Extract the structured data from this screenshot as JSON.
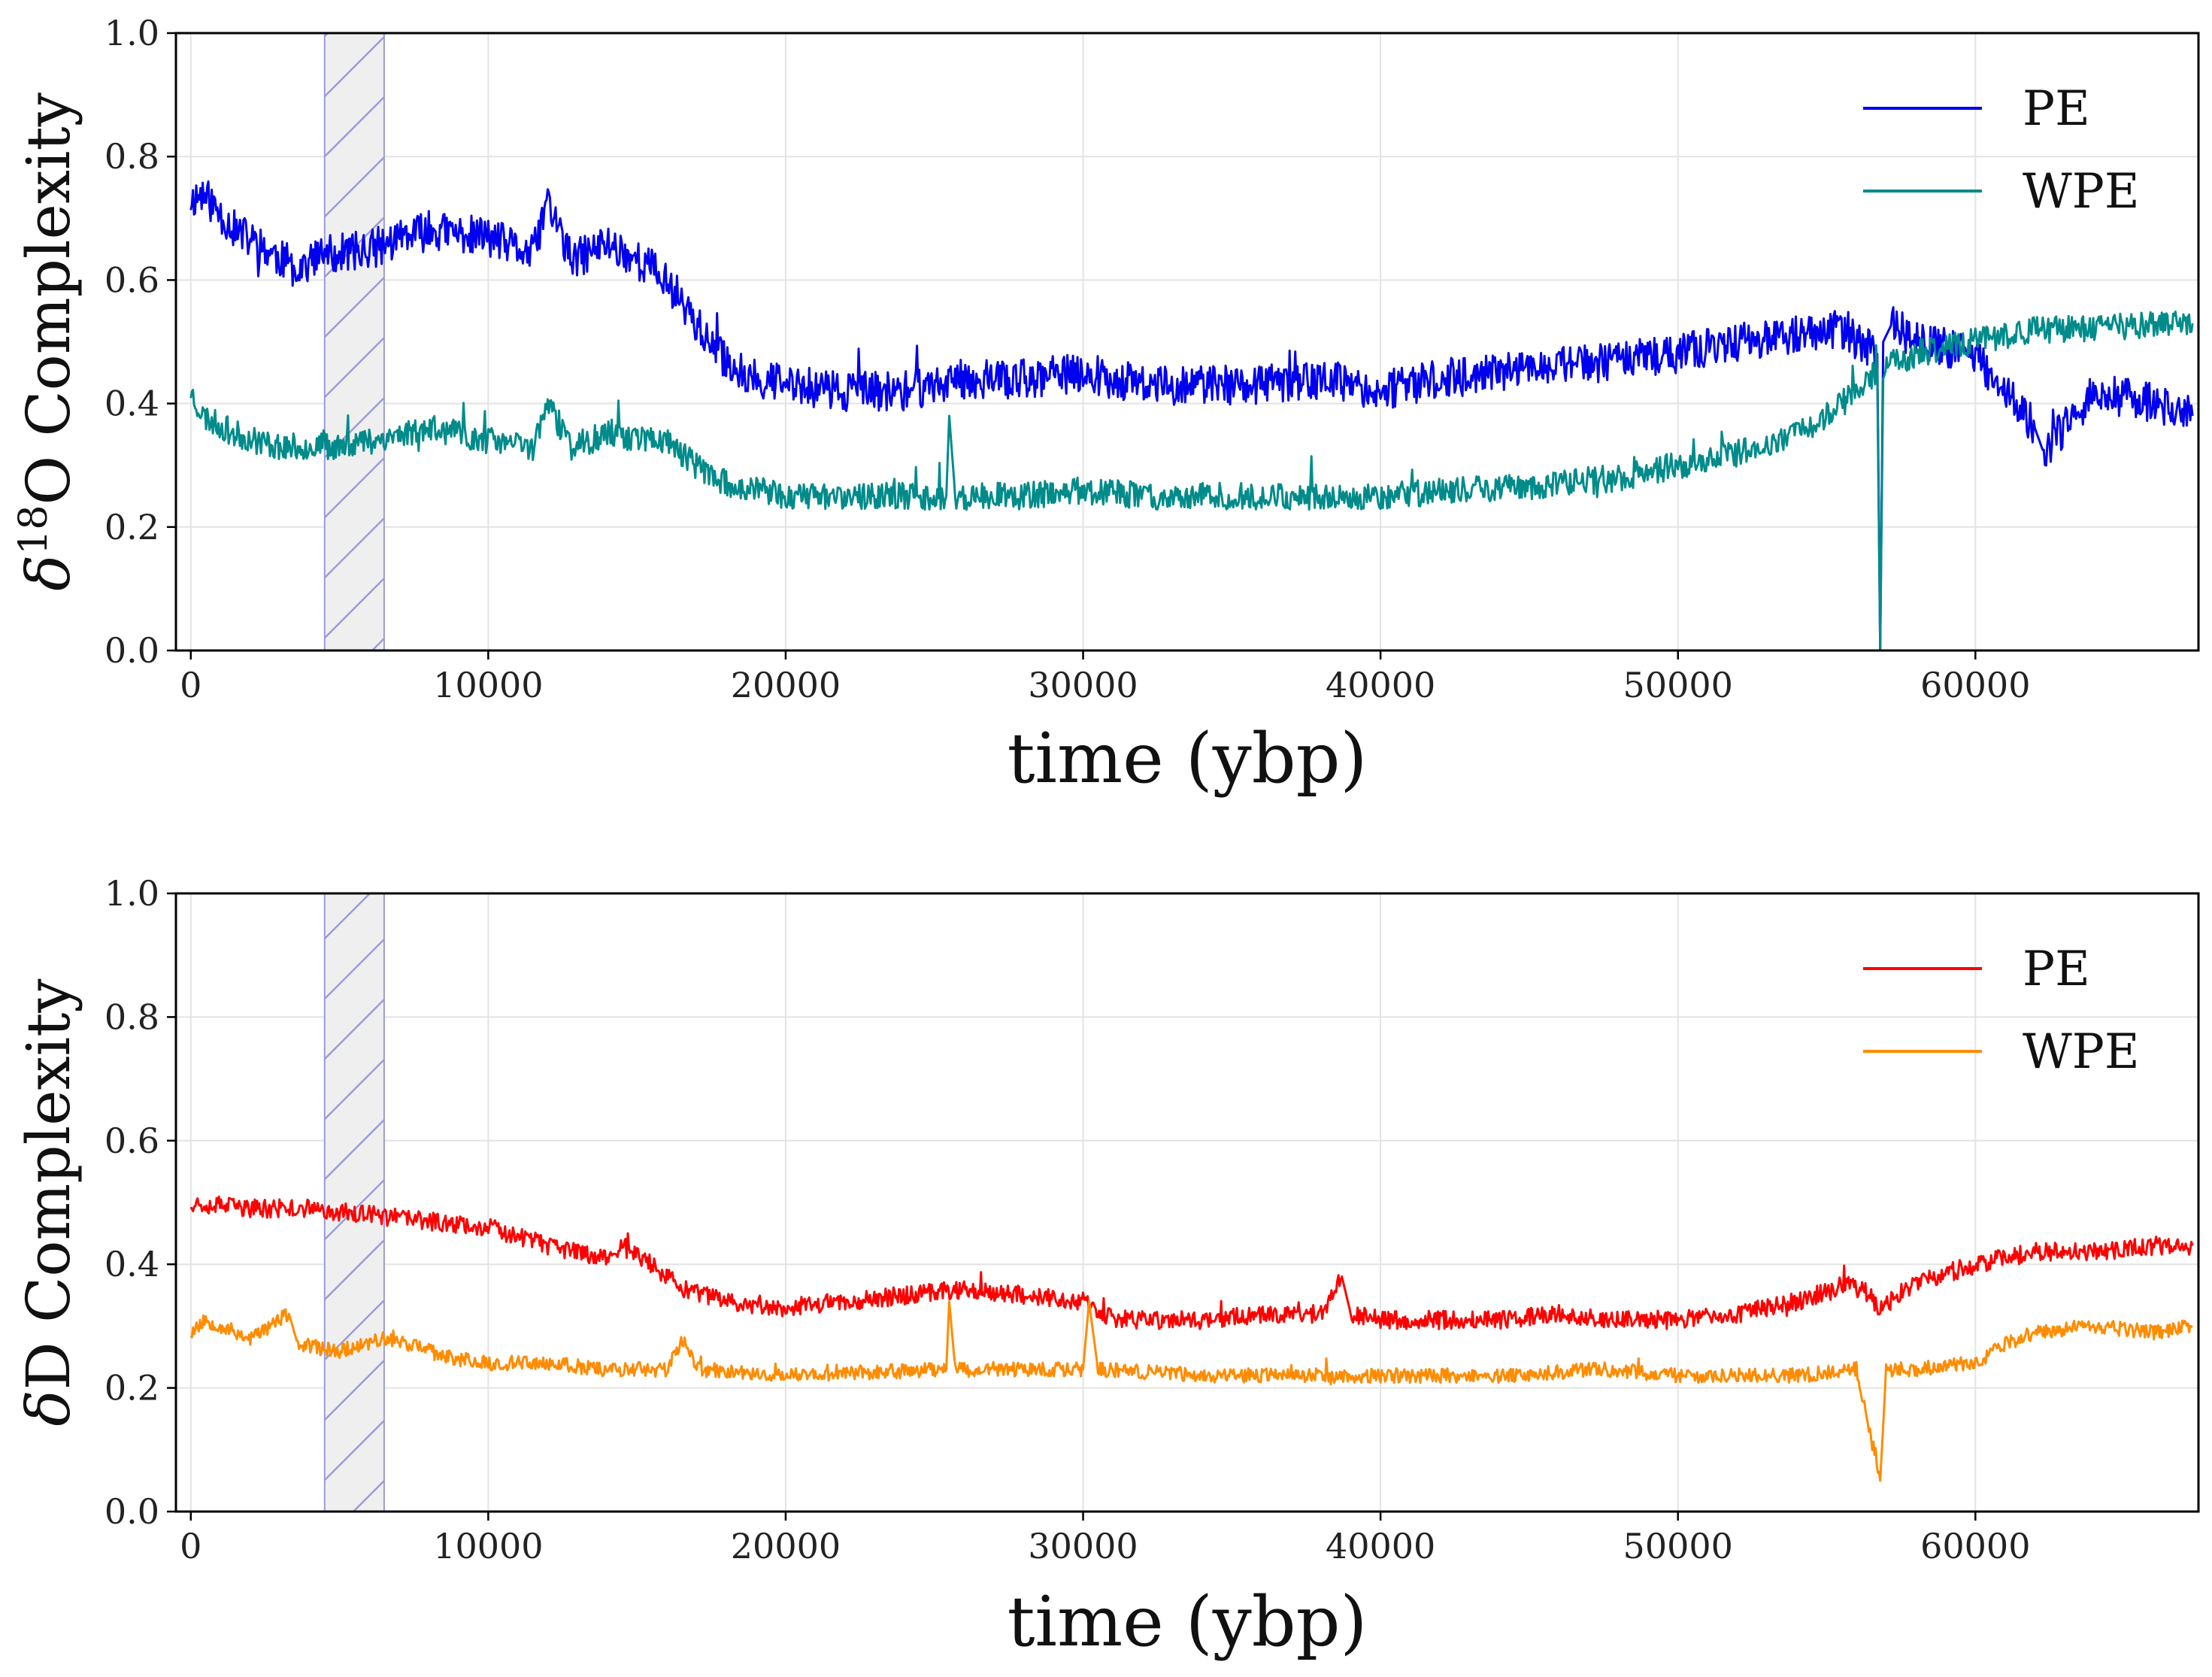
{
  "chart_data": [
    {
      "type": "line",
      "ylabel_main": "δ",
      "ylabel_sup": "18",
      "ylabel_rest": "O Complexity",
      "xlabel": "time (ybp)",
      "xlim": [
        -500,
        67500
      ],
      "ylim": [
        0.0,
        1.0
      ],
      "xticks": [
        0,
        10000,
        20000,
        30000,
        40000,
        50000,
        60000
      ],
      "yticks": [
        "0.0",
        "0.2",
        "0.4",
        "0.6",
        "0.8",
        "1.0"
      ],
      "grid": true,
      "legend_position": "top-right",
      "shaded_band": {
        "x0": 4500,
        "x1": 6500,
        "fill": "#efefef",
        "hatch_color": "#9b9bdc"
      },
      "series": [
        {
          "name": "PE",
          "color": "#0000ee",
          "noise": 0.032,
          "seed": 11,
          "points": [
            [
              0,
              0.73
            ],
            [
              400,
              0.74
            ],
            [
              1500,
              0.68
            ],
            [
              2500,
              0.65
            ],
            [
              3500,
              0.62
            ],
            [
              4500,
              0.64
            ],
            [
              6000,
              0.65
            ],
            [
              8000,
              0.68
            ],
            [
              10000,
              0.67
            ],
            [
              11500,
              0.64
            ],
            [
              12000,
              0.73
            ],
            [
              12800,
              0.63
            ],
            [
              14000,
              0.66
            ],
            [
              15500,
              0.62
            ],
            [
              16500,
              0.57
            ],
            [
              17500,
              0.49
            ],
            [
              18500,
              0.45
            ],
            [
              20000,
              0.43
            ],
            [
              22000,
              0.42
            ],
            [
              24000,
              0.42
            ],
            [
              26000,
              0.44
            ],
            [
              28000,
              0.44
            ],
            [
              30000,
              0.45
            ],
            [
              32000,
              0.43
            ],
            [
              34000,
              0.43
            ],
            [
              36000,
              0.43
            ],
            [
              38000,
              0.44
            ],
            [
              40000,
              0.42
            ],
            [
              42000,
              0.44
            ],
            [
              44000,
              0.45
            ],
            [
              46000,
              0.46
            ],
            [
              48000,
              0.47
            ],
            [
              50000,
              0.48
            ],
            [
              52000,
              0.5
            ],
            [
              54000,
              0.51
            ],
            [
              55500,
              0.52
            ],
            [
              56700,
              0.48
            ],
            [
              56800,
              0.0
            ],
            [
              56900,
              0.5
            ],
            [
              57200,
              0.53
            ],
            [
              58000,
              0.5
            ],
            [
              60000,
              0.48
            ],
            [
              61000,
              0.42
            ],
            [
              62000,
              0.36
            ],
            [
              62300,
              0.32
            ],
            [
              63000,
              0.36
            ],
            [
              64000,
              0.42
            ],
            [
              66000,
              0.4
            ],
            [
              67300,
              0.38
            ]
          ]
        },
        {
          "name": "WPE",
          "color": "#008b8b",
          "noise": 0.022,
          "seed": 23,
          "points": [
            [
              0,
              0.42
            ],
            [
              400,
              0.38
            ],
            [
              1500,
              0.35
            ],
            [
              3000,
              0.33
            ],
            [
              4500,
              0.33
            ],
            [
              6000,
              0.34
            ],
            [
              8000,
              0.36
            ],
            [
              10000,
              0.34
            ],
            [
              11500,
              0.33
            ],
            [
              12000,
              0.4
            ],
            [
              12800,
              0.33
            ],
            [
              14000,
              0.35
            ],
            [
              16000,
              0.34
            ],
            [
              17000,
              0.3
            ],
            [
              18000,
              0.27
            ],
            [
              20000,
              0.25
            ],
            [
              24000,
              0.25
            ],
            [
              25400,
              0.25
            ],
            [
              25500,
              0.38
            ],
            [
              25700,
              0.25
            ],
            [
              28000,
              0.25
            ],
            [
              30000,
              0.26
            ],
            [
              32000,
              0.25
            ],
            [
              36000,
              0.25
            ],
            [
              40000,
              0.25
            ],
            [
              43000,
              0.26
            ],
            [
              46000,
              0.27
            ],
            [
              48000,
              0.28
            ],
            [
              50000,
              0.3
            ],
            [
              52000,
              0.32
            ],
            [
              54000,
              0.35
            ],
            [
              55500,
              0.4
            ],
            [
              56700,
              0.45
            ],
            [
              56800,
              0.0
            ],
            [
              56900,
              0.46
            ],
            [
              58000,
              0.48
            ],
            [
              60000,
              0.5
            ],
            [
              62000,
              0.52
            ],
            [
              64000,
              0.52
            ],
            [
              66000,
              0.53
            ],
            [
              67300,
              0.53
            ]
          ]
        }
      ]
    },
    {
      "type": "line",
      "ylabel_main": "δ",
      "ylabel_sup": "",
      "ylabel_rest": "D Complexity",
      "xlabel": "time (ybp)",
      "xlim": [
        -500,
        67500
      ],
      "ylim": [
        0.0,
        1.0
      ],
      "xticks": [
        0,
        10000,
        20000,
        30000,
        40000,
        50000,
        60000
      ],
      "yticks": [
        "0.0",
        "0.2",
        "0.4",
        "0.6",
        "0.8",
        "1.0"
      ],
      "grid": true,
      "legend_position": "top-right",
      "shaded_band": {
        "x0": 4500,
        "x1": 6500,
        "fill": "#efefef",
        "hatch_color": "#9b9bdc"
      },
      "series": [
        {
          "name": "PE",
          "color": "#ff0000",
          "noise": 0.015,
          "seed": 37,
          "points": [
            [
              0,
              0.5
            ],
            [
              2000,
              0.49
            ],
            [
              4000,
              0.49
            ],
            [
              6000,
              0.48
            ],
            [
              8000,
              0.47
            ],
            [
              10000,
              0.46
            ],
            [
              12000,
              0.43
            ],
            [
              14000,
              0.41
            ],
            [
              14500,
              0.43
            ],
            [
              15500,
              0.4
            ],
            [
              16500,
              0.36
            ],
            [
              18000,
              0.34
            ],
            [
              20000,
              0.33
            ],
            [
              22000,
              0.34
            ],
            [
              24000,
              0.35
            ],
            [
              26000,
              0.36
            ],
            [
              28000,
              0.35
            ],
            [
              30000,
              0.34
            ],
            [
              31000,
              0.31
            ],
            [
              34000,
              0.31
            ],
            [
              36000,
              0.32
            ],
            [
              38000,
              0.32
            ],
            [
              38700,
              0.38
            ],
            [
              39000,
              0.32
            ],
            [
              40000,
              0.31
            ],
            [
              42000,
              0.31
            ],
            [
              44000,
              0.31
            ],
            [
              46000,
              0.32
            ],
            [
              48000,
              0.31
            ],
            [
              50000,
              0.31
            ],
            [
              52000,
              0.32
            ],
            [
              54000,
              0.34
            ],
            [
              56000,
              0.37
            ],
            [
              56800,
              0.33
            ],
            [
              58000,
              0.37
            ],
            [
              60000,
              0.4
            ],
            [
              62000,
              0.42
            ],
            [
              64000,
              0.42
            ],
            [
              66000,
              0.43
            ],
            [
              67300,
              0.43
            ]
          ]
        },
        {
          "name": "WPE",
          "color": "#ff8c00",
          "noise": 0.012,
          "seed": 53,
          "points": [
            [
              0,
              0.29
            ],
            [
              500,
              0.31
            ],
            [
              2000,
              0.28
            ],
            [
              3300,
              0.32
            ],
            [
              3600,
              0.27
            ],
            [
              5000,
              0.26
            ],
            [
              6500,
              0.28
            ],
            [
              7500,
              0.27
            ],
            [
              8500,
              0.25
            ],
            [
              10000,
              0.24
            ],
            [
              12000,
              0.24
            ],
            [
              14000,
              0.23
            ],
            [
              16000,
              0.23
            ],
            [
              16600,
              0.28
            ],
            [
              17000,
              0.23
            ],
            [
              20000,
              0.22
            ],
            [
              25400,
              0.23
            ],
            [
              25500,
              0.34
            ],
            [
              25700,
              0.23
            ],
            [
              28000,
              0.23
            ],
            [
              30000,
              0.23
            ],
            [
              30200,
              0.34
            ],
            [
              30500,
              0.23
            ],
            [
              34000,
              0.22
            ],
            [
              40000,
              0.22
            ],
            [
              44000,
              0.22
            ],
            [
              47500,
              0.23
            ],
            [
              50000,
              0.22
            ],
            [
              54000,
              0.22
            ],
            [
              56000,
              0.23
            ],
            [
              56800,
              0.05
            ],
            [
              57000,
              0.23
            ],
            [
              58000,
              0.23
            ],
            [
              60000,
              0.24
            ],
            [
              61000,
              0.27
            ],
            [
              62000,
              0.29
            ],
            [
              64000,
              0.3
            ],
            [
              66000,
              0.29
            ],
            [
              67300,
              0.3
            ]
          ]
        }
      ]
    }
  ]
}
